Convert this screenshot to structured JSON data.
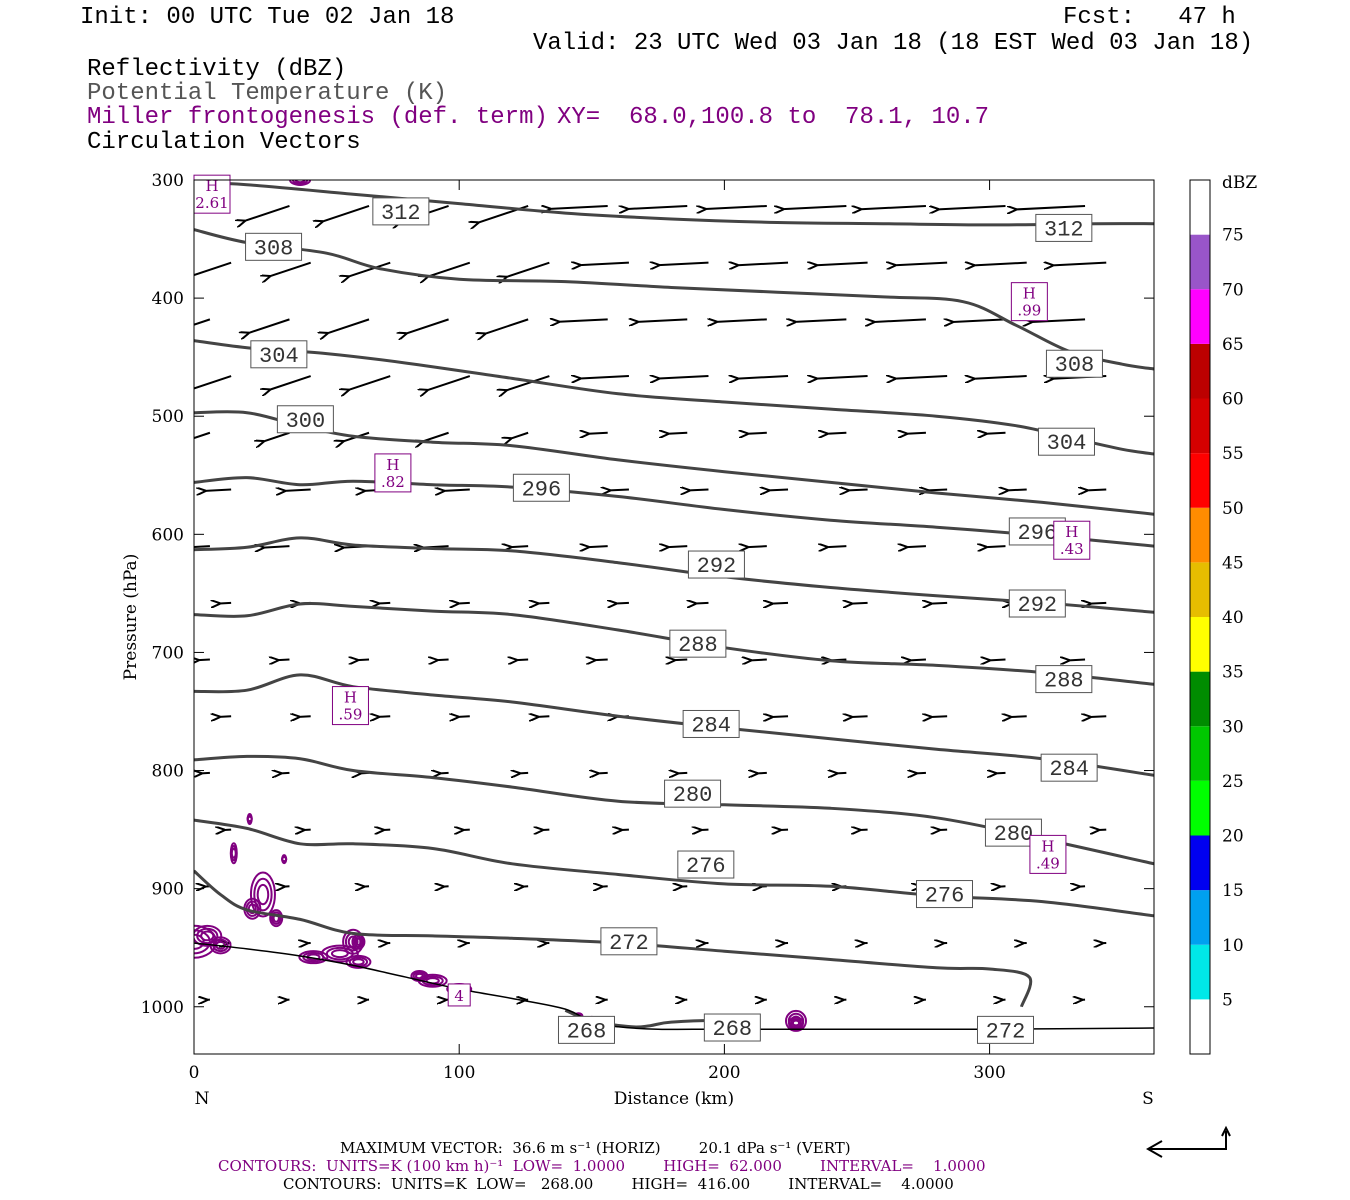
{
  "header": {
    "init": "Init: 00 UTC Tue 02 Jan 18",
    "fcst": "Fcst:   47 h",
    "valid": "Valid: 23 UTC Wed 03 Jan 18 (18 EST Wed 03 Jan 18)",
    "field1": "Reflectivity (dBZ)",
    "field2": "Potential Temperature (K)",
    "field3": "Miller frontogenesis (def. term)",
    "xy": "XY=  68.0,100.8 to  78.1, 10.7",
    "field4": "Circulation Vectors"
  },
  "footer": {
    "max_vector": "MAXIMUM VECTOR:  36.6 m s⁻¹ (HORIZ)        20.1 dPa s⁻¹ (VERT)",
    "contours1": "CONTOURS:  UNITS=K (100 km h)⁻¹  LOW=  1.0000        HIGH=  62.000        INTERVAL=    1.0000",
    "contours2": "CONTOURS:  UNITS=K  LOW=   268.00        HIGH=  416.00        INTERVAL=    4.0000"
  },
  "chart_data": {
    "type": "cross-section",
    "xlabel": "Distance (km)",
    "ylabel": "Pressure (hPa)",
    "x_ticks": [
      "0",
      "100",
      "200",
      "300"
    ],
    "y_ticks": [
      "300",
      "400",
      "500",
      "600",
      "700",
      "800",
      "900",
      "1000"
    ],
    "xlim": [
      0,
      362
    ],
    "ylim": [
      1040,
      300
    ],
    "end_left": "N",
    "end_right": "S",
    "colorbar": {
      "unit": "dBZ",
      "levels": [
        "5",
        "10",
        "15",
        "20",
        "25",
        "30",
        "35",
        "40",
        "45",
        "50",
        "55",
        "60",
        "65",
        "70",
        "75"
      ],
      "colors": [
        "#00e8e8",
        "#00a0f0",
        "#0000f0",
        "#00ff00",
        "#00c800",
        "#008c00",
        "#ffff00",
        "#e6bd00",
        "#ff8c00",
        "#ff0000",
        "#d50000",
        "#bc0000",
        "#ff00ff",
        "#9955c9",
        "#ffffff"
      ]
    },
    "theta_contours": [
      {
        "label": "312",
        "x": [
          0,
          20,
          60,
          100,
          140,
          180,
          220,
          260,
          300,
          340,
          362
        ],
        "p": [
          302,
          304,
          312,
          320,
          328,
          333,
          336,
          337,
          338,
          337,
          337
        ]
      },
      {
        "label": "308",
        "x": [
          0,
          20,
          50,
          70,
          100,
          140,
          180,
          220,
          260,
          290,
          310,
          330,
          350,
          362
        ],
        "p": [
          342,
          353,
          362,
          375,
          384,
          386,
          391,
          395,
          399,
          403,
          423,
          445,
          456,
          460
        ]
      },
      {
        "label": "304",
        "x": [
          0,
          20,
          50,
          80,
          120,
          160,
          200,
          240,
          280,
          310,
          330,
          350,
          362
        ],
        "p": [
          436,
          442,
          447,
          455,
          468,
          481,
          488,
          494,
          500,
          508,
          518,
          528,
          532
        ]
      },
      {
        "label": "300",
        "x": [
          0,
          20,
          40,
          60,
          90,
          120,
          160,
          200,
          240,
          280,
          320,
          362
        ],
        "p": [
          497,
          497,
          508,
          517,
          522,
          525,
          537,
          547,
          556,
          565,
          573,
          583
        ]
      },
      {
        "label": "296",
        "x": [
          0,
          20,
          40,
          60,
          90,
          120,
          160,
          200,
          240,
          280,
          320,
          362
        ],
        "p": [
          556,
          552,
          558,
          555,
          558,
          560,
          568,
          579,
          588,
          594,
          601,
          610
        ]
      },
      {
        "label": "292",
        "x": [
          0,
          20,
          40,
          60,
          90,
          120,
          160,
          200,
          240,
          280,
          320,
          362
        ],
        "p": [
          613,
          611,
          603,
          609,
          612,
          614,
          624,
          636,
          645,
          652,
          658,
          666
        ]
      },
      {
        "label": "288",
        "x": [
          0,
          20,
          40,
          60,
          90,
          120,
          160,
          200,
          240,
          280,
          320,
          362
        ],
        "p": [
          668,
          669,
          659,
          661,
          665,
          668,
          681,
          696,
          707,
          711,
          717,
          727
        ]
      },
      {
        "label": "284",
        "x": [
          0,
          20,
          40,
          60,
          90,
          120,
          160,
          200,
          240,
          280,
          320,
          362
        ],
        "p": [
          733,
          732,
          719,
          729,
          736,
          742,
          754,
          764,
          773,
          782,
          790,
          804
        ]
      },
      {
        "label": "280",
        "x": [
          0,
          20,
          40,
          60,
          90,
          120,
          160,
          200,
          240,
          280,
          320,
          362
        ],
        "p": [
          791,
          788,
          790,
          800,
          806,
          814,
          826,
          829,
          832,
          840,
          858,
          879
        ]
      },
      {
        "label": "276",
        "x": [
          0,
          20,
          40,
          60,
          90,
          120,
          160,
          200,
          240,
          280,
          320,
          362
        ],
        "p": [
          842,
          849,
          862,
          862,
          866,
          879,
          888,
          896,
          898,
          906,
          911,
          923
        ]
      },
      {
        "label": "272",
        "x": [
          0,
          10,
          20,
          40,
          60,
          90,
          120,
          160,
          200,
          240,
          280,
          300,
          315,
          312
        ],
        "p": [
          885,
          905,
          918,
          926,
          938,
          940,
          942,
          946,
          953,
          960,
          967,
          968,
          975,
          1000
        ]
      },
      {
        "label": "268",
        "x": [
          140,
          150,
          165,
          172,
          180,
          200,
          212
        ],
        "p": [
          1003,
          1012,
          1017,
          1016,
          1013,
          1012,
          1018
        ]
      }
    ],
    "theta_labels": [
      {
        "text": "312",
        "x": 78,
        "p": 327
      },
      {
        "text": "312",
        "x": 328,
        "p": 341
      },
      {
        "text": "308",
        "x": 30,
        "p": 357
      },
      {
        "text": "308",
        "x": 332,
        "p": 456
      },
      {
        "text": "304",
        "x": 32,
        "p": 448
      },
      {
        "text": "304",
        "x": 329,
        "p": 522
      },
      {
        "text": "300",
        "x": 42,
        "p": 503
      },
      {
        "text": "296",
        "x": 131,
        "p": 561
      },
      {
        "text": "296",
        "x": 318,
        "p": 598
      },
      {
        "text": "292",
        "x": 197,
        "p": 626
      },
      {
        "text": "292",
        "x": 318,
        "p": 659
      },
      {
        "text": "288",
        "x": 190,
        "p": 693
      },
      {
        "text": "288",
        "x": 328,
        "p": 723
      },
      {
        "text": "284",
        "x": 195,
        "p": 761
      },
      {
        "text": "284",
        "x": 330,
        "p": 798
      },
      {
        "text": "280",
        "x": 188,
        "p": 820
      },
      {
        "text": "280",
        "x": 309,
        "p": 853
      },
      {
        "text": "276",
        "x": 193,
        "p": 880
      },
      {
        "text": "276",
        "x": 283,
        "p": 905
      },
      {
        "text": "272",
        "x": 164,
        "p": 945
      },
      {
        "text": "272",
        "x": 306,
        "p": 1020
      },
      {
        "text": "268",
        "x": 148,
        "p": 1020
      },
      {
        "text": "268",
        "x": 203,
        "p": 1018
      }
    ],
    "frontogenesis_highs": [
      {
        "H": "H",
        "value": "2.61",
        "x": 0,
        "p": 312
      },
      {
        "H": "H",
        "value": ".99",
        "x": 315,
        "p": 403
      },
      {
        "H": "H",
        "value": ".82",
        "x": 75,
        "p": 548
      },
      {
        "H": "H",
        "value": ".43",
        "x": 331,
        "p": 605
      },
      {
        "H": "H",
        "value": ".59",
        "x": 59,
        "p": 745
      },
      {
        "H": "H",
        "value": ".49",
        "x": 322,
        "p": 871
      },
      {
        "H": "",
        "value": "4",
        "x": 100,
        "p": 990
      }
    ],
    "ground": {
      "x": [
        0,
        20,
        40,
        60,
        80,
        100,
        120,
        140,
        150,
        160,
        175,
        200,
        250,
        300,
        362
      ],
      "p": [
        946,
        951,
        957,
        965,
        975,
        985,
        993,
        1002,
        1013,
        1017,
        1019,
        1019,
        1019,
        1019,
        1018
      ]
    },
    "reference_vector": "36.6 m s-1 horizontal, 20.1 dPa s-1 vertical"
  }
}
